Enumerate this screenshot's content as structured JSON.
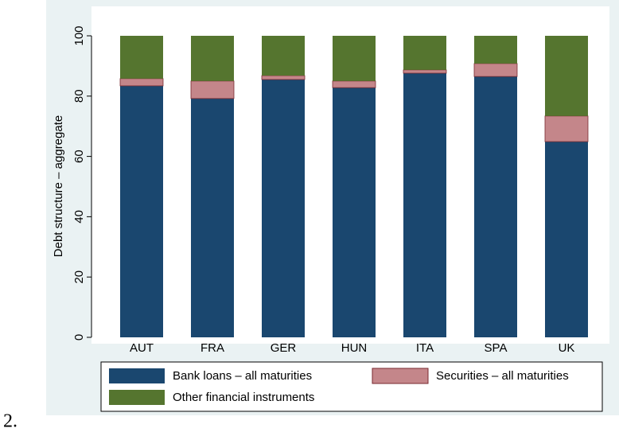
{
  "chart_data": {
    "type": "stacked_bar",
    "ylabel": "Debt structure – aggregate",
    "categories": [
      "AUT",
      "FRA",
      "GER",
      "HUN",
      "ITA",
      "SPA",
      "UK"
    ],
    "series": [
      {
        "name": "Bank loans – all maturities",
        "color": "#1a476f",
        "values": [
          83.4,
          79.2,
          85.5,
          82.8,
          87.6,
          86.5,
          64.9
        ]
      },
      {
        "name": "Securities – all maturities",
        "color": "#c4868a",
        "values": [
          2.4,
          5.8,
          1.3,
          2.2,
          1.1,
          4.3,
          8.5
        ]
      },
      {
        "name": "Other financial instruments",
        "color": "#55752f",
        "values": [
          14.2,
          15.0,
          13.2,
          15.0,
          11.3,
          9.2,
          26.6
        ]
      }
    ],
    "ylim": [
      0,
      100
    ],
    "yticks": [
      0,
      20,
      40,
      60,
      80,
      100
    ],
    "grid": false
  },
  "footer": "2."
}
